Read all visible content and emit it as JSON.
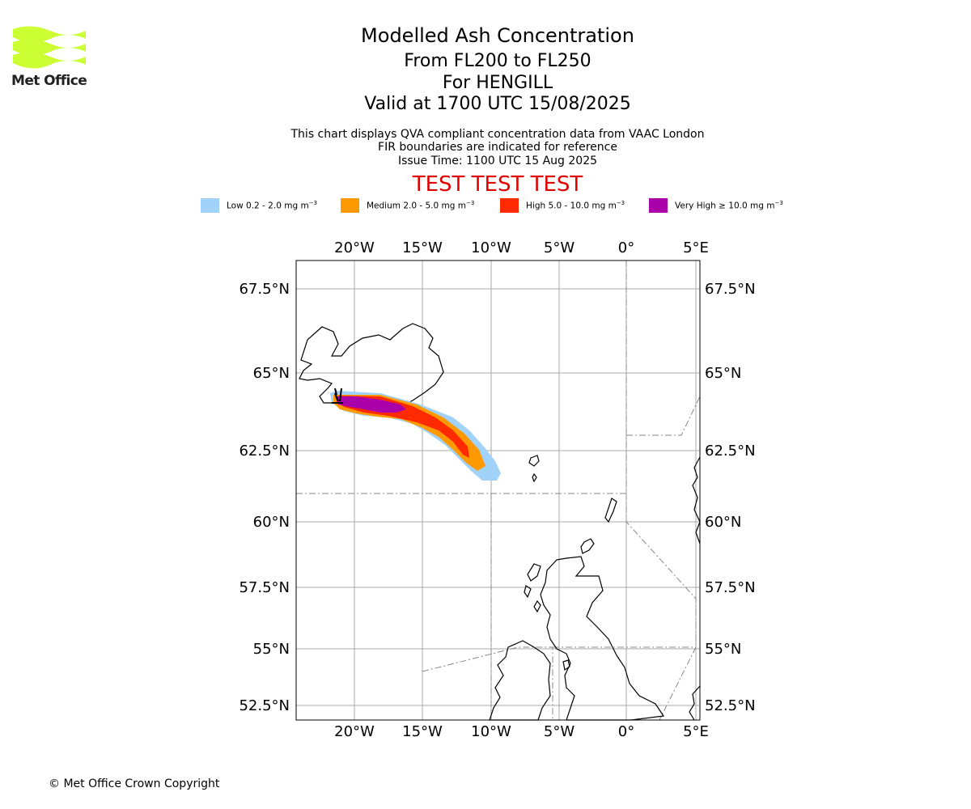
{
  "logo": {
    "name": "Met Office",
    "colors": [
      "#ccff33"
    ]
  },
  "header": {
    "title": "Modelled Ash Concentration",
    "level_range": "From FL200 to FL250",
    "volcano": "For HENGILL",
    "valid_time": "Valid at 1700 UTC 15/08/2025",
    "info_lines": [
      "This chart displays QVA compliant concentration data from VAAC London",
      "FIR boundaries are indicated for reference",
      "Issue Time: 1100 UTC 15 Aug 2025"
    ],
    "test_banner": "TEST TEST TEST",
    "test_color": "#e00000"
  },
  "legend": [
    {
      "label": "Low 0.2 - 2.0 mg m",
      "unit_exp": "−3",
      "color": "#a0d2fa"
    },
    {
      "label": "Medium 2.0 - 5.0 mg m",
      "unit_exp": "−3",
      "color": "#ff9900"
    },
    {
      "label": "High 5.0 - 10.0 mg m",
      "unit_exp": "−3",
      "color": "#ff2a00"
    },
    {
      "label": "Very High  ≥  10.0 mg m",
      "unit_exp": "−3",
      "color": "#aa00aa"
    }
  ],
  "map": {
    "lon_range": [
      -24.3,
      5.2
    ],
    "lat_range": [
      51.9,
      68.1
    ],
    "lon_ticks": [
      "20°W",
      "15°W",
      "10°W",
      "5°W",
      "0°",
      "5°E"
    ],
    "lat_ticks": [
      "67.5°N",
      "65°N",
      "62.5°N",
      "60°N",
      "57.5°N",
      "55°N",
      "52.5°N"
    ],
    "gridlines": true,
    "ash_layers": [
      {
        "level": "low",
        "color": "#a0d2fa"
      },
      {
        "level": "medium",
        "color": "#ff9900"
      },
      {
        "level": "high",
        "color": "#ff2a00"
      },
      {
        "level": "very_high",
        "color": "#aa00aa"
      }
    ],
    "volcano_location": {
      "name": "HENGILL",
      "lon": -21.3,
      "lat": 64.1
    }
  },
  "footer": {
    "copyright": "© Met Office Crown Copyright"
  }
}
